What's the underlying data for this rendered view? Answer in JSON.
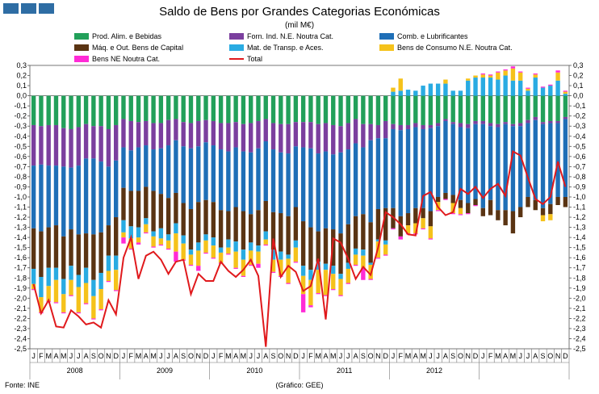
{
  "header": {
    "title": "Saldo de Bens por Grandes Categorias Económicas",
    "unit": "(mil M€)"
  },
  "footer": {
    "source": "Fonte: INE",
    "credit": "(Gráfico: GEE)"
  },
  "colors": {
    "food": "#22a05a",
    "industrial": "#7b3f9e",
    "fuel": "#1f6fb7",
    "machinery": "#5a3413",
    "transport": "#29abe2",
    "consumer": "#f5c21b",
    "other": "#ff2bd6",
    "total": "#e0191c"
  },
  "chart_data": {
    "type": "bar",
    "stacked": true,
    "title": "Saldo de Bens por Grandes Categorias Económicas",
    "ylabel": "(mil M€)",
    "ylim": [
      -2.5,
      0.3
    ],
    "ystep": 0.1,
    "years": [
      "2008",
      "2009",
      "2010",
      "2011",
      "2012"
    ],
    "months": [
      "J",
      "F",
      "M",
      "A",
      "M",
      "J",
      "J",
      "A",
      "S",
      "O",
      "N",
      "D"
    ],
    "series": [
      {
        "key": "food",
        "name": "Prod. Alim. e Bebidas",
        "values": [
          -0.29,
          -0.3,
          -0.29,
          -0.29,
          -0.32,
          -0.33,
          -0.31,
          -0.28,
          -0.3,
          -0.3,
          -0.33,
          -0.29,
          -0.23,
          -0.25,
          -0.26,
          -0.25,
          -0.27,
          -0.27,
          -0.24,
          -0.23,
          -0.26,
          -0.27,
          -0.25,
          -0.24,
          -0.25,
          -0.27,
          -0.27,
          -0.26,
          -0.28,
          -0.27,
          -0.25,
          -0.23,
          -0.27,
          -0.28,
          -0.28,
          -0.26,
          -0.26,
          -0.26,
          -0.28,
          -0.27,
          -0.29,
          -0.3,
          -0.27,
          -0.23,
          -0.28,
          -0.28,
          -0.29,
          -0.25,
          -0.28,
          -0.29,
          -0.29,
          -0.27,
          -0.29,
          -0.29,
          -0.27,
          -0.23,
          -0.26,
          -0.27,
          -0.28,
          -0.25,
          -0.25,
          -0.27,
          -0.28,
          -0.26,
          -0.28,
          -0.27,
          -0.24,
          -0.21,
          -0.26,
          -0.25,
          -0.25,
          -0.21
        ]
      },
      {
        "key": "industrial",
        "name": "Forn. Ind. N.E. Noutra Cat.",
        "values": [
          -0.4,
          -0.38,
          -0.4,
          -0.4,
          -0.38,
          -0.38,
          -0.38,
          -0.34,
          -0.32,
          -0.35,
          -0.37,
          -0.35,
          -0.28,
          -0.29,
          -0.25,
          -0.24,
          -0.26,
          -0.25,
          -0.25,
          -0.21,
          -0.24,
          -0.25,
          -0.25,
          -0.22,
          -0.24,
          -0.26,
          -0.28,
          -0.25,
          -0.27,
          -0.29,
          -0.27,
          -0.22,
          -0.26,
          -0.28,
          -0.29,
          -0.24,
          -0.25,
          -0.26,
          -0.29,
          -0.28,
          -0.29,
          -0.26,
          -0.26,
          -0.24,
          -0.23,
          -0.16,
          -0.13,
          -0.17,
          -0.05,
          -0.05,
          -0.04,
          -0.04,
          -0.04,
          -0.03,
          -0.03,
          -0.02,
          -0.02,
          -0.04,
          -0.04,
          -0.03,
          -0.03,
          -0.03,
          -0.03,
          -0.02,
          -0.02,
          -0.03,
          -0.03,
          -0.03,
          -0.02,
          -0.02,
          -0.02,
          -0.02
        ]
      },
      {
        "key": "fuel",
        "name": "Comb. e Lubrificantes",
        "values": [
          -0.62,
          -0.66,
          -0.61,
          -0.59,
          -0.69,
          -0.61,
          -0.68,
          -0.74,
          -0.75,
          -0.7,
          -0.58,
          -0.56,
          -0.4,
          -0.4,
          -0.43,
          -0.41,
          -0.41,
          -0.45,
          -0.52,
          -0.52,
          -0.56,
          -0.6,
          -0.55,
          -0.57,
          -0.56,
          -0.6,
          -0.59,
          -0.59,
          -0.59,
          -0.61,
          -0.61,
          -0.59,
          -0.62,
          -0.6,
          -0.62,
          -0.6,
          -0.73,
          -0.78,
          -0.77,
          -0.76,
          -0.74,
          -0.8,
          -0.74,
          -0.72,
          -0.66,
          -0.81,
          -0.7,
          -0.69,
          -0.78,
          -0.85,
          -0.83,
          -0.8,
          -0.78,
          -0.82,
          -0.7,
          -0.71,
          -0.7,
          -0.72,
          -0.74,
          -0.74,
          -0.83,
          -0.73,
          -0.82,
          -0.85,
          -0.84,
          -0.8,
          -0.73,
          -0.79,
          -0.83,
          -0.8,
          -0.73,
          -0.77
        ]
      },
      {
        "key": "machinery",
        "name": "Máq. e Out. Bens de Capital",
        "values": [
          -0.4,
          -0.45,
          -0.4,
          -0.42,
          -0.42,
          -0.36,
          -0.4,
          -0.34,
          -0.45,
          -0.4,
          -0.3,
          -0.38,
          -0.32,
          -0.35,
          -0.36,
          -0.31,
          -0.4,
          -0.34,
          -0.36,
          -0.3,
          -0.32,
          -0.4,
          -0.4,
          -0.34,
          -0.35,
          -0.37,
          -0.28,
          -0.34,
          -0.38,
          -0.28,
          -0.35,
          -0.3,
          -0.37,
          -0.38,
          -0.38,
          -0.33,
          -0.44,
          -0.42,
          -0.3,
          -0.35,
          -0.36,
          -0.4,
          -0.38,
          -0.32,
          -0.35,
          -0.4,
          -0.3,
          -0.32,
          -0.2,
          -0.2,
          -0.12,
          -0.15,
          -0.1,
          -0.15,
          -0.05,
          -0.06,
          -0.08,
          -0.08,
          -0.1,
          -0.06,
          -0.08,
          -0.15,
          -0.1,
          -0.15,
          -0.22,
          -0.1,
          -0.1,
          -0.1,
          -0.07,
          -0.1,
          -0.08,
          -0.1
        ]
      },
      {
        "key": "transport",
        "name": "Mat. de Transp. e Aces.",
        "values": [
          -0.15,
          -0.2,
          -0.18,
          -0.12,
          -0.15,
          -0.14,
          -0.12,
          -0.15,
          -0.16,
          -0.16,
          -0.15,
          -0.14,
          -0.12,
          -0.12,
          -0.1,
          -0.06,
          -0.05,
          -0.1,
          -0.06,
          -0.1,
          -0.08,
          -0.05,
          -0.08,
          -0.06,
          -0.08,
          -0.05,
          -0.08,
          -0.1,
          -0.1,
          -0.08,
          -0.06,
          -0.08,
          -0.1,
          -0.08,
          -0.04,
          -0.07,
          -0.1,
          -0.1,
          -0.08,
          -0.06,
          -0.08,
          -0.05,
          -0.06,
          -0.06,
          -0.06,
          -0.02,
          -0.02,
          -0.04,
          0.04,
          0.05,
          0.06,
          0.05,
          0.1,
          0.12,
          0.12,
          0.12,
          0.05,
          0.05,
          0.15,
          0.18,
          0.18,
          0.18,
          0.16,
          0.2,
          0.15,
          0.15,
          0.05,
          0.18,
          0.08,
          0.1,
          0.15,
          0.02
        ]
      },
      {
        "key": "consumer",
        "name": "Bens de Consumo N.E. Noutra Cat.",
        "values": [
          -0.05,
          -0.15,
          -0.15,
          -0.22,
          -0.18,
          -0.15,
          -0.25,
          -0.2,
          -0.22,
          -0.2,
          -0.1,
          -0.2,
          -0.05,
          -0.1,
          -0.05,
          -0.08,
          -0.1,
          -0.06,
          -0.08,
          -0.18,
          -0.16,
          -0.1,
          -0.15,
          -0.12,
          -0.12,
          -0.1,
          -0.06,
          -0.16,
          -0.16,
          -0.14,
          -0.12,
          -0.05,
          -0.12,
          -0.16,
          -0.24,
          -0.14,
          -0.18,
          -0.25,
          -0.23,
          -0.25,
          -0.15,
          -0.16,
          -0.14,
          -0.1,
          -0.12,
          -0.14,
          -0.16,
          -0.1,
          0.04,
          0.12,
          -0.08,
          -0.1,
          -0.1,
          -0.12,
          -0.08,
          0.04,
          -0.1,
          -0.06,
          0.02,
          0.02,
          0.03,
          0.02,
          0.07,
          0.05,
          0.12,
          0.08,
          0.02,
          0.03,
          -0.06,
          -0.06,
          0.08,
          0.02
        ]
      },
      {
        "key": "other",
        "name": "Bens NE Noutra Cat.",
        "values": [
          -0.01,
          -0.01,
          -0.01,
          -0.01,
          -0.01,
          -0.01,
          -0.01,
          -0.01,
          -0.01,
          -0.01,
          -0.01,
          -0.01,
          -0.06,
          -0.01,
          -0.02,
          -0.01,
          -0.01,
          -0.01,
          -0.01,
          -0.1,
          -0.01,
          -0.01,
          -0.05,
          -0.01,
          -0.01,
          -0.01,
          -0.01,
          -0.01,
          -0.01,
          -0.01,
          -0.04,
          -0.01,
          -0.01,
          -0.01,
          -0.01,
          -0.01,
          -0.18,
          -0.02,
          -0.01,
          -0.01,
          -0.01,
          -0.01,
          -0.01,
          -0.01,
          -0.12,
          -0.01,
          -0.01,
          -0.01,
          -0.01,
          -0.03,
          -0.01,
          -0.01,
          -0.01,
          -0.01,
          -0.01,
          -0.01,
          -0.01,
          -0.01,
          -0.01,
          -0.01,
          0.01,
          0.01,
          0.01,
          0.01,
          0.02,
          0.01,
          0.01,
          0.01,
          0.01,
          0.01,
          0.02,
          0.01
        ]
      }
    ],
    "total": {
      "name": "Total",
      "values": [
        -1.86,
        -2.15,
        -2.02,
        -2.28,
        -2.29,
        -2.12,
        -2.18,
        -2.26,
        -2.24,
        -2.29,
        -2.02,
        -2.16,
        -1.6,
        -1.4,
        -1.81,
        -1.58,
        -1.54,
        -1.62,
        -1.76,
        -1.64,
        -1.62,
        -1.96,
        -1.76,
        -1.83,
        -1.83,
        -1.64,
        -1.73,
        -1.79,
        -1.72,
        -1.62,
        -1.78,
        -2.48,
        -1.41,
        -1.79,
        -1.68,
        -1.74,
        -1.93,
        -1.88,
        -1.61,
        -2.21,
        -1.41,
        -1.45,
        -1.61,
        -1.81,
        -1.69,
        -1.77,
        -1.5,
        -1.15,
        -1.2,
        -1.27,
        -1.37,
        -1.38,
        -0.99,
        -0.95,
        -1.1,
        -1.18,
        -1.15,
        -0.92,
        -0.97,
        -0.9,
        -1.01,
        -0.92,
        -0.87,
        -0.99,
        -0.55,
        -0.59,
        -0.81,
        -1.02,
        -1.07,
        -1.0,
        -0.65,
        -0.9
      ]
    }
  }
}
